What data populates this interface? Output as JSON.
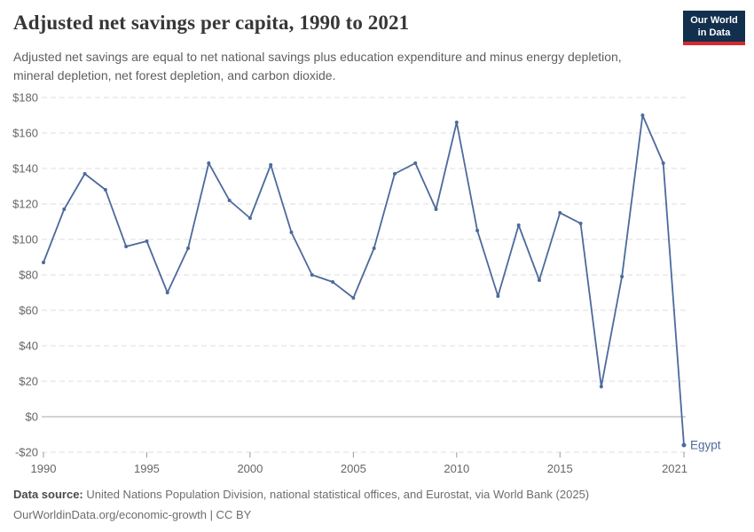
{
  "header": {
    "title": "Adjusted net savings per capita, 1990 to 2021",
    "subtitle_lines": [
      "Adjusted net savings are equal to net national savings plus education expenditure and minus energy depletion,",
      "mineral depletion, net forest depletion, and carbon dioxide."
    ],
    "logo": {
      "line1": "Our World",
      "line2": "in Data"
    }
  },
  "chart_data": {
    "type": "line",
    "title": "Adjusted net savings per capita, 1990 to 2021",
    "entity": "Egypt",
    "end_label": "Egypt",
    "x": [
      1990,
      1991,
      1992,
      1993,
      1994,
      1995,
      1996,
      1997,
      1998,
      1999,
      2000,
      2001,
      2002,
      2003,
      2004,
      2005,
      2006,
      2007,
      2008,
      2009,
      2010,
      2011,
      2012,
      2013,
      2014,
      2015,
      2016,
      2017,
      2018,
      2019,
      2020,
      2021
    ],
    "series": [
      {
        "name": "Egypt",
        "color": "#4C6A9C",
        "values": [
          87,
          117,
          137,
          128,
          96,
          99,
          70,
          95,
          143,
          122,
          112,
          142,
          104,
          80,
          76,
          67,
          95,
          137,
          143,
          117,
          166,
          105,
          68,
          108,
          77,
          115,
          109,
          17,
          79,
          170,
          143,
          -16
        ]
      }
    ],
    "ylim": [
      -20,
      180
    ],
    "yticks": [
      -20,
      0,
      20,
      40,
      60,
      80,
      100,
      120,
      140,
      160,
      180
    ],
    "ytick_labels": [
      "-$20",
      "$0",
      "$20",
      "$40",
      "$60",
      "$80",
      "$100",
      "$120",
      "$140",
      "$160",
      "$180"
    ],
    "xticks": [
      1990,
      1995,
      2000,
      2005,
      2010,
      2015,
      2021
    ],
    "xtick_labels": [
      "1990",
      "1995",
      "2000",
      "2005",
      "2010",
      "2015",
      "2021"
    ],
    "grid": "horizontal dashed, zero line solid",
    "legend": "end-of-line entity label"
  },
  "footer": {
    "source_bold": "Data source:",
    "source_rest": " United Nations Population Division, national statistical offices, and Eurostat, via World Bank (2025)",
    "license": "OurWorldinData.org/economic-growth | CC BY"
  },
  "colors": {
    "line": "#4C6A9C",
    "title_text": "#373737",
    "subtitle_text": "#5e5e5e",
    "axis_text": "#666666",
    "grid": "#dcdcdc",
    "zero_line": "#a7a7a7",
    "tick": "#999999",
    "footer_text": "#6d6d6d",
    "logo_bg": "#12304d",
    "logo_red": "#d7282f"
  }
}
